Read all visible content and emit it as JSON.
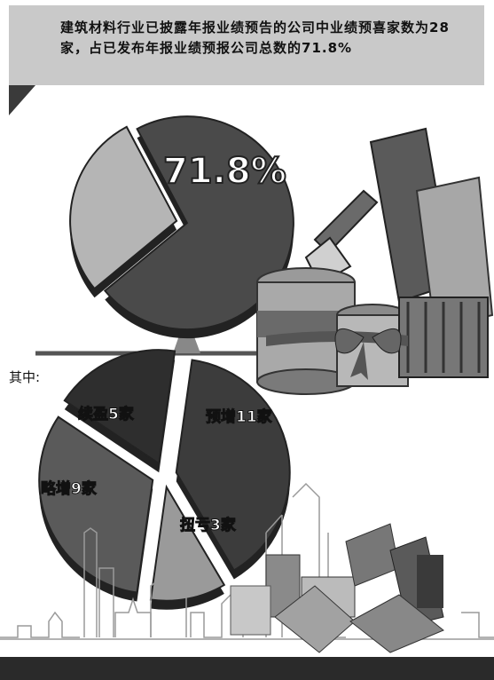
{
  "header": {
    "text": "建筑材料行业已披露年报业绩预告的公司中业绩预喜家数为28家，占已发布年报业绩预报公司总数的71.8%"
  },
  "main_pie": {
    "label": "71.8%"
  },
  "breakdown": {
    "intro": "其中:"
  },
  "chart_data": [
    {
      "type": "pie",
      "title": "",
      "slices": [
        {
          "label": "71.8%",
          "value": 71.8,
          "color": "#4a4a4a"
        },
        {
          "label": "",
          "value": 28.2,
          "color": "#b5b5b5"
        }
      ]
    },
    {
      "type": "pie",
      "title": "",
      "slices": [
        {
          "label": "预增11家",
          "value": 11,
          "color": "#3c3c3c"
        },
        {
          "label": "扭亏3家",
          "value": 3,
          "color": "#9a9a9a"
        },
        {
          "label": "略增9家",
          "value": 9,
          "color": "#5a5a5a"
        },
        {
          "label": "续盈5家",
          "value": 5,
          "color": "#2e2e2e"
        }
      ]
    }
  ],
  "colors": {
    "header_bg": "#c9c9c9",
    "dark": "#3a3a3a",
    "light": "#b5b5b5"
  }
}
